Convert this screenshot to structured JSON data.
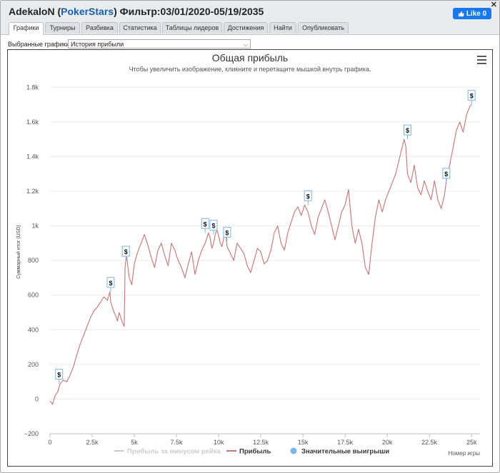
{
  "window": {
    "player": "AdekaloN",
    "site": "PokerStars",
    "filter": "Фильтр:03/01/2020-05/19/2035",
    "close": "✕",
    "like": "Like 0"
  },
  "tabs": [
    "Графики",
    "Турниры",
    "Разбивка",
    "Статистика",
    "Таблицы лидеров",
    "Достижения",
    "Найти",
    "Опубликовать"
  ],
  "selector": {
    "label": "Выбранные графики:",
    "value": "История прибыли"
  },
  "chart_data": {
    "type": "line",
    "title": "Общая прибыль",
    "subtitle": "Чтобы увеличить изображение, кликните и перетащите мышкой внутрь графика.",
    "ylabel": "Суммарный итог (USD)",
    "xlabel": "Номер игры",
    "xlim": [
      0,
      25500
    ],
    "ylim": [
      -200,
      1900
    ],
    "xticks": [
      0,
      2500,
      5000,
      7500,
      10000,
      12500,
      15000,
      17500,
      20000,
      22500,
      25000
    ],
    "xtick_labels": [
      "0",
      "2.5k",
      "5k",
      "7.5k",
      "10k",
      "12.5k",
      "15k",
      "17.5k",
      "20k",
      "22.5k",
      "25k"
    ],
    "yticks": [
      -200,
      0,
      200,
      400,
      600,
      800,
      1000,
      1200,
      1400,
      1600,
      1800
    ],
    "ytick_labels": [
      "−200",
      "0",
      "200",
      "400",
      "600",
      "800",
      "1k",
      "1.2k",
      "1.4k",
      "1.6k",
      "1.8k"
    ],
    "grid": true,
    "legend_position": "bottom",
    "legend": [
      {
        "name": "Прибыль за минусом рейка",
        "color": "#cccccc",
        "kind": "line",
        "disabled": true
      },
      {
        "name": "Прибыль",
        "color": "#c87474",
        "kind": "line",
        "disabled": false
      },
      {
        "name": "Значительные выигрыши",
        "color": "#7cb5ec",
        "kind": "dot",
        "disabled": false
      }
    ],
    "series": [
      {
        "name": "Прибыль",
        "color": "#c87474",
        "x": [
          0,
          150,
          300,
          450,
          600,
          800,
          1000,
          1200,
          1400,
          1600,
          1800,
          2000,
          2200,
          2400,
          2600,
          2800,
          3000,
          3200,
          3400,
          3550,
          3600,
          3700,
          3800,
          3900,
          4000,
          4100,
          4200,
          4300,
          4400,
          4450,
          4500,
          4550,
          4700,
          4850,
          5000,
          5200,
          5400,
          5600,
          5800,
          6000,
          6200,
          6400,
          6600,
          6800,
          7000,
          7200,
          7400,
          7600,
          7800,
          8000,
          8200,
          8400,
          8600,
          8800,
          9000,
          9200,
          9300,
          9400,
          9500,
          9600,
          9700,
          9800,
          9900,
          10000,
          10100,
          10200,
          10300,
          10400,
          10500,
          10700,
          10900,
          11100,
          11300,
          11500,
          11700,
          11900,
          12100,
          12300,
          12500,
          12700,
          12900,
          13100,
          13300,
          13500,
          13700,
          13900,
          14100,
          14300,
          14500,
          14700,
          14900,
          15100,
          15300,
          15500,
          15700,
          15900,
          16100,
          16300,
          16500,
          16700,
          16900,
          17100,
          17300,
          17500,
          17700,
          17900,
          18100,
          18300,
          18500,
          18700,
          18900,
          19100,
          19300,
          19500,
          19700,
          19900,
          20100,
          20300,
          20500,
          20700,
          20900,
          21000,
          21100,
          21200,
          21400,
          21600,
          21800,
          22000,
          22200,
          22400,
          22600,
          22800,
          23000,
          23200,
          23400,
          23500,
          23700,
          23900,
          24100,
          24300,
          24500,
          24700,
          24900,
          25000
        ],
        "values": [
          -10,
          -30,
          20,
          40,
          90,
          110,
          100,
          140,
          190,
          260,
          320,
          370,
          420,
          470,
          510,
          530,
          560,
          590,
          570,
          620,
          560,
          530,
          500,
          480,
          450,
          500,
          470,
          440,
          420,
          760,
          800,
          820,
          700,
          660,
          780,
          850,
          900,
          950,
          890,
          820,
          760,
          860,
          900,
          830,
          770,
          900,
          860,
          800,
          760,
          700,
          780,
          850,
          720,
          800,
          860,
          900,
          930,
          960,
          930,
          870,
          900,
          950,
          980,
          940,
          900,
          880,
          930,
          970,
          880,
          840,
          800,
          900,
          870,
          840,
          770,
          730,
          800,
          870,
          850,
          780,
          800,
          860,
          960,
          1000,
          900,
          860,
          960,
          1020,
          1080,
          1110,
          1060,
          1120,
          1080,
          1000,
          950,
          1050,
          1100,
          1150,
          1080,
          1000,
          920,
          1000,
          1080,
          1120,
          1210,
          1000,
          900,
          980,
          900,
          760,
          720,
          900,
          1050,
          1150,
          1080,
          1150,
          1200,
          1250,
          1300,
          1380,
          1460,
          1500,
          1460,
          1300,
          1250,
          1350,
          1220,
          1180,
          1260,
          1200,
          1150,
          1260,
          1150,
          1100,
          1180,
          1260,
          1350,
          1450,
          1550,
          1600,
          1540,
          1640,
          1690,
          1700
        ]
      }
    ],
    "significant_wins": [
      {
        "x": 540,
        "y": 90
      },
      {
        "x": 3600,
        "y": 620
      },
      {
        "x": 4500,
        "y": 800
      },
      {
        "x": 9200,
        "y": 960
      },
      {
        "x": 9700,
        "y": 950
      },
      {
        "x": 10500,
        "y": 910
      },
      {
        "x": 15300,
        "y": 1120
      },
      {
        "x": 21200,
        "y": 1500
      },
      {
        "x": 23500,
        "y": 1250
      },
      {
        "x": 25000,
        "y": 1700
      }
    ]
  }
}
